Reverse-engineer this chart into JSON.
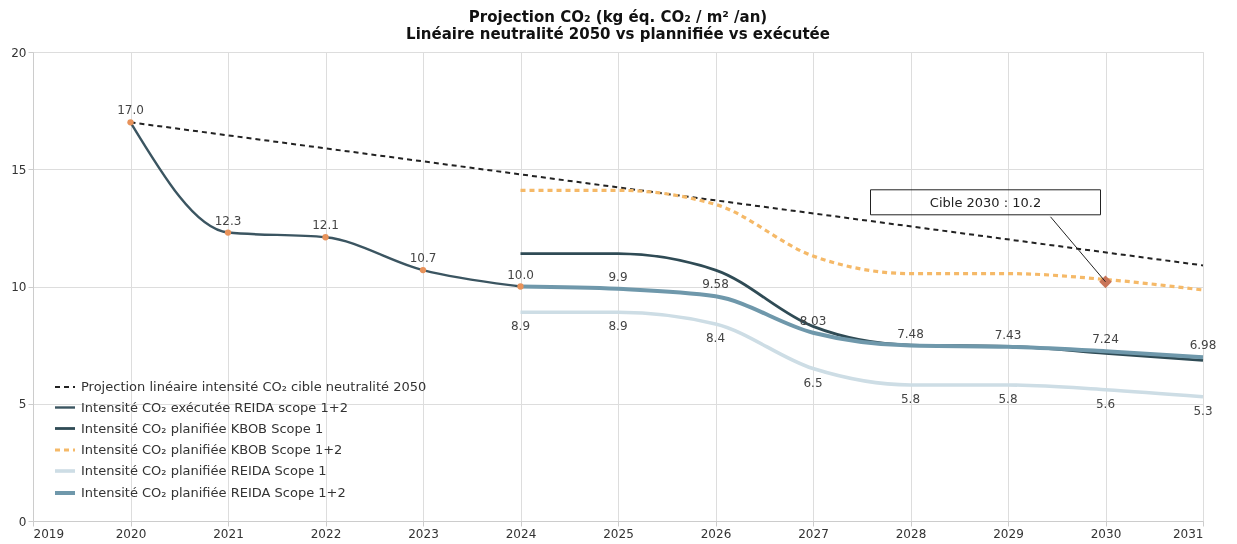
{
  "chart_data": {
    "type": "line",
    "title": [
      "Projection CO₂ (kg éq. CO₂ / m² /an)",
      "Linéaire neutralité 2050 vs plannifiée vs exécutée"
    ],
    "xlim": [
      2019,
      2031
    ],
    "xticks": [
      2019,
      2020,
      2021,
      2022,
      2023,
      2024,
      2025,
      2026,
      2027,
      2028,
      2029,
      2030,
      2031
    ],
    "ylim": [
      0,
      20
    ],
    "yticks": [
      0,
      5,
      10,
      15,
      20
    ],
    "grid": true,
    "legend": "bottom left",
    "series": [
      {
        "name": "Projection linéaire intensité CO₂ cible neutralité 2050",
        "color": "#222222",
        "line_style": "dashed",
        "x": [
          2020,
          2031
        ],
        "values": [
          17.0,
          10.9
        ]
      },
      {
        "name": "Intensité CO₂ exécutée REIDA scope 1+2",
        "color": "#3b5561",
        "marker": "circle",
        "colors": [
          "#e8925a",
          "#e8925a",
          "#e8925a",
          "#e8925a",
          "#e8925a"
        ],
        "x": [
          2020,
          2021,
          2022,
          2023,
          2024
        ],
        "values": [
          17.0,
          12.3,
          12.1,
          10.7,
          10.0
        ],
        "value_labels": [
          "17.0",
          "12.3",
          "12.1",
          "10.7",
          "10.0"
        ]
      },
      {
        "name": "Intensité CO₂ planifiée KBOB Scope 1",
        "color": "#2f4b55",
        "x": [
          2024,
          2025,
          2026,
          2027,
          2028,
          2029,
          2030,
          2031
        ],
        "values": [
          11.4,
          11.4,
          10.7,
          8.3,
          7.5,
          7.45,
          7.15,
          6.85
        ]
      },
      {
        "name": "Intensité CO₂ planifiée KBOB Scope 1+2",
        "color": "#f5b968",
        "line_style": "dashed",
        "x": [
          2024,
          2025,
          2026,
          2027,
          2028,
          2029,
          2030,
          2031
        ],
        "values": [
          14.1,
          14.1,
          13.5,
          11.3,
          10.55,
          10.55,
          10.3,
          9.85
        ]
      },
      {
        "name": "Intensité CO₂ planifiée REIDA Scope 1",
        "color": "#cddde5",
        "x": [
          2024,
          2025,
          2026,
          2027,
          2028,
          2029,
          2030,
          2031
        ],
        "values": [
          8.9,
          8.9,
          8.4,
          6.5,
          5.8,
          5.8,
          5.6,
          5.3
        ],
        "value_labels": [
          "8.9",
          "8.9",
          "8.4",
          "6.5",
          "5.8",
          "5.8",
          "5.6",
          "5.3"
        ]
      },
      {
        "name": "Intensité CO₂ planifiée REIDA Scope 1+2",
        "color": "#6f98ab",
        "x": [
          2024,
          2025,
          2026,
          2027,
          2028,
          2029,
          2030,
          2031
        ],
        "values": [
          10.0,
          9.9,
          9.58,
          8.03,
          7.48,
          7.43,
          7.24,
          6.98
        ],
        "value_labels": [
          null,
          "9.9",
          "9.58",
          "8.03",
          "7.48",
          "7.43",
          "7.24",
          "6.98"
        ]
      },
      {
        "type": "scatter",
        "color": "#c97458",
        "marker": "diamond",
        "x": [
          2030
        ],
        "values": [
          10.2
        ]
      }
    ],
    "annotations": [
      {
        "text": "Cible 2030 : 10.2",
        "x": 2030,
        "y": 10.2
      }
    ]
  }
}
